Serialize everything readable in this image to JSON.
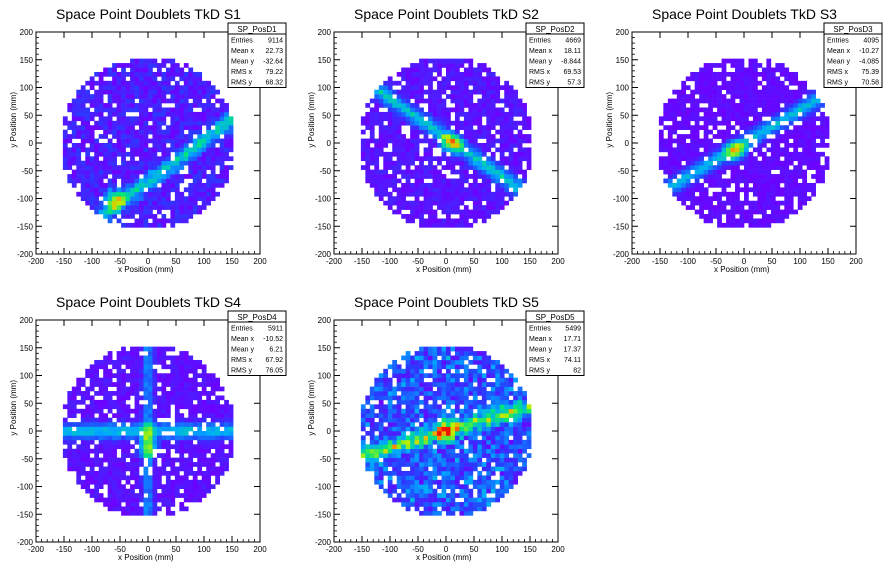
{
  "chart_data": [
    {
      "type": "heatmap",
      "title": "Space Point Doublets TkD S1",
      "xlabel": "x Position (mm)",
      "ylabel": "y Position (mm)",
      "xlim": [
        -200,
        200
      ],
      "ylim": [
        -200,
        200
      ],
      "ticks": [
        "-200",
        "-150",
        "-100",
        "-50",
        "0",
        "50",
        "100",
        "150",
        "200"
      ],
      "stats": {
        "name": "SP_PosD1",
        "rows": [
          {
            "label": "Entries",
            "value": "9114"
          },
          {
            "label": "Mean x",
            "value": "22.73"
          },
          {
            "label": "Mean y",
            "value": "-32.64"
          },
          {
            "label": "RMS x",
            "value": "79.22"
          },
          {
            "label": "RMS y",
            "value": "68.32"
          }
        ]
      },
      "pattern": {
        "band": {
          "slope": 0.75,
          "intercept": -70,
          "hot": [
            -60,
            -100
          ]
        },
        "density": 0.55
      }
    },
    {
      "type": "heatmap",
      "title": "Space Point Doublets TkD S2",
      "xlabel": "x Position (mm)",
      "ylabel": "y Position (mm)",
      "xlim": [
        -200,
        200
      ],
      "ylim": [
        -200,
        200
      ],
      "ticks": [
        "-200",
        "-150",
        "-100",
        "-50",
        "0",
        "50",
        "100",
        "150",
        "200"
      ],
      "stats": {
        "name": "SP_PosD2",
        "rows": [
          {
            "label": "Entries",
            "value": "4669"
          },
          {
            "label": "Mean x",
            "value": "18.11"
          },
          {
            "label": "Mean y",
            "value": "-8.844"
          },
          {
            "label": "RMS x",
            "value": "69.53"
          },
          {
            "label": "RMS y",
            "value": "57.3"
          }
        ]
      },
      "pattern": {
        "band": {
          "slope": -0.7,
          "intercept": 10,
          "hot": [
            10,
            0
          ]
        },
        "density": 0.35
      }
    },
    {
      "type": "heatmap",
      "title": "Space Point Doublets TkD S3",
      "xlabel": "x Position (mm)",
      "ylabel": "y Position (mm)",
      "xlim": [
        -200,
        200
      ],
      "ylim": [
        -200,
        200
      ],
      "ticks": [
        "-200",
        "-150",
        "-100",
        "-50",
        "0",
        "50",
        "100",
        "150",
        "200"
      ],
      "stats": {
        "name": "SP_PosD3",
        "rows": [
          {
            "label": "Entries",
            "value": "4095"
          },
          {
            "label": "Mean x",
            "value": "-10.27"
          },
          {
            "label": "Mean y",
            "value": "-4.085"
          },
          {
            "label": "RMS x",
            "value": "75.39"
          },
          {
            "label": "RMS y",
            "value": "70.58"
          }
        ]
      },
      "pattern": {
        "band": {
          "slope": 0.6,
          "intercept": 0,
          "hot": [
            -15,
            -15
          ]
        },
        "density": 0.2
      }
    },
    {
      "type": "heatmap",
      "title": "Space Point Doublets TkD S4",
      "xlabel": "x Position (mm)",
      "ylabel": "y Position (mm)",
      "xlim": [
        -200,
        200
      ],
      "ylim": [
        -200,
        200
      ],
      "ticks": [
        "-200",
        "-150",
        "-100",
        "-50",
        "0",
        "50",
        "100",
        "150",
        "200"
      ],
      "stats": {
        "name": "SP_PosD4",
        "rows": [
          {
            "label": "Entries",
            "value": "5911"
          },
          {
            "label": "Mean x",
            "value": "-10.52"
          },
          {
            "label": "Mean y",
            "value": "6.21"
          },
          {
            "label": "RMS x",
            "value": "67.92"
          },
          {
            "label": "RMS y",
            "value": "76.05"
          }
        ]
      },
      "pattern": {
        "band": {
          "slope": 0,
          "intercept": 0,
          "hot": [
            0,
            -30
          ]
        },
        "density": 0.3
      }
    },
    {
      "type": "heatmap",
      "title": "Space Point Doublets TkD S5",
      "xlabel": "x Position (mm)",
      "ylabel": "y Position (mm)",
      "xlim": [
        -200,
        200
      ],
      "ylim": [
        -200,
        200
      ],
      "ticks": [
        "-200",
        "-150",
        "-100",
        "-50",
        "0",
        "50",
        "100",
        "150",
        "200"
      ],
      "stats": {
        "name": "SP_PosD5",
        "rows": [
          {
            "label": "Entries",
            "value": "5499"
          },
          {
            "label": "Mean x",
            "value": "17.71"
          },
          {
            "label": "Mean y",
            "value": "17.37"
          },
          {
            "label": "RMS x",
            "value": "74.11"
          },
          {
            "label": "RMS y",
            "value": "82"
          }
        ]
      },
      "pattern": {
        "band": {
          "slope": 0.3,
          "intercept": 0,
          "hot": [
            0,
            0
          ]
        },
        "density": 0.6
      }
    }
  ]
}
